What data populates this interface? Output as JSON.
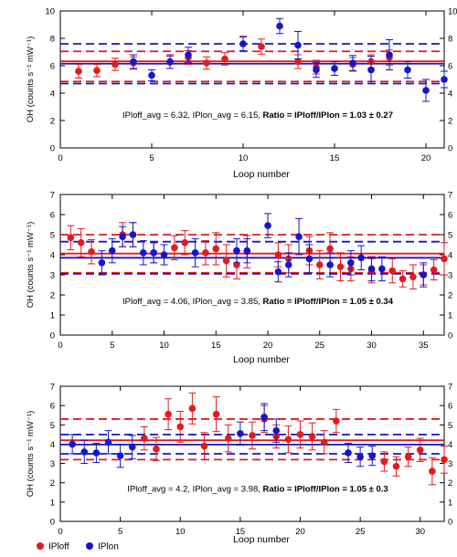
{
  "chart_data": [
    {
      "type": "scatter",
      "xlabel": "Loop number",
      "ylabel": "OH (counts s⁻¹ mW⁻¹)",
      "xlim": [
        0,
        21
      ],
      "ylim": [
        0,
        10
      ],
      "xticks": [
        0,
        5,
        10,
        15,
        20
      ],
      "yticks": [
        0,
        2,
        4,
        6,
        8,
        10
      ],
      "annotation": {
        "plain": "IPloff_avg = 6.32, IPlon_avg = 6.15, ",
        "bold": "Ratio = IPloff/IPlon = 1.03 ± 0.27"
      },
      "series": [
        {
          "name": "IPloff",
          "color": "#e41a1c",
          "x": [
            1,
            2,
            3,
            4,
            6,
            7,
            8,
            9,
            10,
            11,
            13,
            14,
            15,
            16,
            17,
            18
          ],
          "y": [
            5.6,
            5.65,
            6.1,
            6.2,
            6.25,
            6.6,
            6.2,
            6.5,
            7.6,
            7.4,
            6.3,
            5.9,
            5.8,
            6.1,
            6.3,
            6.6
          ],
          "err": [
            0.5,
            0.45,
            0.45,
            0.45,
            0.45,
            0.5,
            0.45,
            0.45,
            0.55,
            0.55,
            0.5,
            0.5,
            0.5,
            0.5,
            0.5,
            0.55
          ],
          "mean": 6.32,
          "mean_minus_sd": 4.85,
          "mean_plus_sd": 7.05
        },
        {
          "name": "IPlon",
          "color": "#1515cc",
          "x": [
            4,
            5,
            6,
            7,
            10,
            12,
            13,
            14,
            15,
            16,
            17,
            18,
            19,
            20,
            21
          ],
          "y": [
            6.3,
            5.3,
            6.3,
            6.8,
            7.6,
            8.9,
            7.5,
            5.7,
            5.8,
            6.2,
            5.7,
            6.8,
            5.7,
            4.2,
            5.0
          ],
          "err": [
            0.5,
            0.4,
            0.5,
            0.55,
            0.5,
            0.55,
            1.0,
            0.55,
            0.5,
            0.55,
            1.0,
            1.1,
            0.6,
            0.8,
            0.6
          ],
          "mean": 6.15,
          "mean_minus_sd": 4.7,
          "mean_plus_sd": 7.6
        }
      ]
    },
    {
      "type": "scatter",
      "xlabel": "Loop number",
      "ylabel": "OH (counts s⁻¹ mW⁻¹)",
      "xlim": [
        0,
        37
      ],
      "ylim": [
        0,
        7
      ],
      "xticks": [
        0,
        5,
        10,
        15,
        20,
        25,
        30,
        35
      ],
      "yticks": [
        0,
        1,
        2,
        3,
        4,
        5,
        6,
        7
      ],
      "annotation": {
        "plain": "IPloff_avg = 4.06, IPlon_avg = 3.85, ",
        "bold": "Ratio = IPloff/IPlon = 1.05 ± 0.34"
      },
      "series": [
        {
          "name": "IPloff",
          "color": "#e41a1c",
          "x": [
            1,
            2,
            3,
            6,
            7,
            9,
            11,
            12,
            14,
            15,
            16,
            17,
            18,
            21,
            22,
            24,
            25,
            26,
            27,
            28,
            30,
            32,
            33,
            34,
            35,
            36,
            37
          ],
          "y": [
            4.85,
            4.6,
            4.15,
            5.0,
            5.0,
            4.1,
            4.35,
            4.6,
            4.1,
            4.3,
            3.7,
            3.5,
            4.15,
            4.0,
            3.8,
            4.2,
            3.5,
            4.3,
            3.4,
            3.3,
            3.2,
            3.2,
            2.8,
            2.9,
            3.0,
            3.25,
            3.8
          ],
          "err": [
            0.6,
            0.7,
            0.6,
            0.6,
            0.6,
            0.5,
            0.6,
            0.6,
            0.6,
            0.8,
            0.8,
            0.7,
            0.8,
            0.6,
            0.7,
            0.7,
            0.7,
            0.8,
            0.7,
            0.6,
            0.6,
            0.6,
            0.4,
            0.6,
            0.5,
            0.5,
            0.8
          ],
          "mean": 4.06,
          "mean_minus_sd": 3.1,
          "mean_plus_sd": 5.0
        },
        {
          "name": "IPlon",
          "color": "#1515cc",
          "x": [
            4,
            5,
            6,
            7,
            8,
            9,
            10,
            13,
            17,
            18,
            20,
            21,
            22,
            23,
            24,
            26,
            28,
            29,
            30,
            31,
            35
          ],
          "y": [
            3.6,
            4.2,
            4.9,
            5.0,
            4.1,
            4.1,
            4.0,
            4.1,
            4.2,
            4.2,
            5.45,
            3.15,
            3.5,
            4.9,
            3.8,
            3.5,
            3.6,
            3.85,
            3.3,
            3.3,
            3.0
          ],
          "err": [
            0.6,
            0.6,
            0.5,
            0.6,
            0.6,
            0.5,
            0.5,
            0.7,
            0.6,
            0.6,
            0.6,
            0.5,
            0.6,
            0.9,
            0.7,
            0.6,
            0.6,
            0.6,
            0.6,
            0.6,
            0.6
          ],
          "mean": 3.85,
          "mean_minus_sd": 3.05,
          "mean_plus_sd": 4.65
        }
      ]
    },
    {
      "type": "scatter",
      "xlabel": "Loop number",
      "ylabel": "OH (counts s⁻¹ mW⁻¹)",
      "xlim": [
        0,
        32
      ],
      "ylim": [
        0,
        7
      ],
      "xticks": [
        0,
        5,
        10,
        15,
        20,
        25,
        30
      ],
      "yticks": [
        0,
        1,
        2,
        3,
        4,
        5,
        6,
        7
      ],
      "annotation": {
        "plain": "IPloff_avg = 4.2, IPlon_avg = 3.98, ",
        "bold": "Ratio = IPloff/IPlon = 1.05 ± 0.3"
      },
      "series": [
        {
          "name": "IPloff",
          "color": "#e41a1c",
          "x": [
            7,
            8,
            9,
            10,
            11,
            12,
            13,
            14,
            16,
            17,
            18,
            19,
            20,
            21,
            22,
            23,
            27,
            28,
            29,
            30,
            31,
            32
          ],
          "y": [
            4.3,
            3.75,
            5.55,
            4.9,
            5.85,
            3.9,
            5.55,
            4.3,
            4.45,
            5.3,
            4.4,
            4.25,
            4.5,
            4.4,
            4.1,
            5.2,
            3.1,
            2.85,
            3.35,
            3.7,
            2.6,
            3.2
          ],
          "err": [
            0.6,
            0.6,
            0.8,
            0.8,
            0.8,
            0.7,
            0.9,
            0.7,
            0.7,
            0.7,
            0.6,
            0.7,
            0.7,
            0.7,
            0.6,
            0.6,
            0.5,
            0.5,
            0.5,
            0.6,
            0.7,
            0.7
          ],
          "mean": 4.2,
          "mean_minus_sd": 3.2,
          "mean_plus_sd": 5.3
        },
        {
          "name": "IPlon",
          "color": "#1515cc",
          "x": [
            1,
            2,
            3,
            4,
            5,
            6,
            15,
            17,
            18,
            24,
            25,
            26
          ],
          "y": [
            4.0,
            3.6,
            3.55,
            4.1,
            3.4,
            3.85,
            4.55,
            5.4,
            4.7,
            3.55,
            3.35,
            3.4
          ],
          "err": [
            0.5,
            0.6,
            0.5,
            0.6,
            0.6,
            0.6,
            0.6,
            0.7,
            0.6,
            0.5,
            0.5,
            0.5
          ],
          "mean": 3.98,
          "mean_minus_sd": 3.5,
          "mean_plus_sd": 4.5
        }
      ]
    }
  ],
  "legend": {
    "placement": "bottom-left",
    "items": [
      {
        "label": "IPloff",
        "color": "#e41a1c"
      },
      {
        "label": "IPlon",
        "color": "#1515cc"
      }
    ]
  }
}
